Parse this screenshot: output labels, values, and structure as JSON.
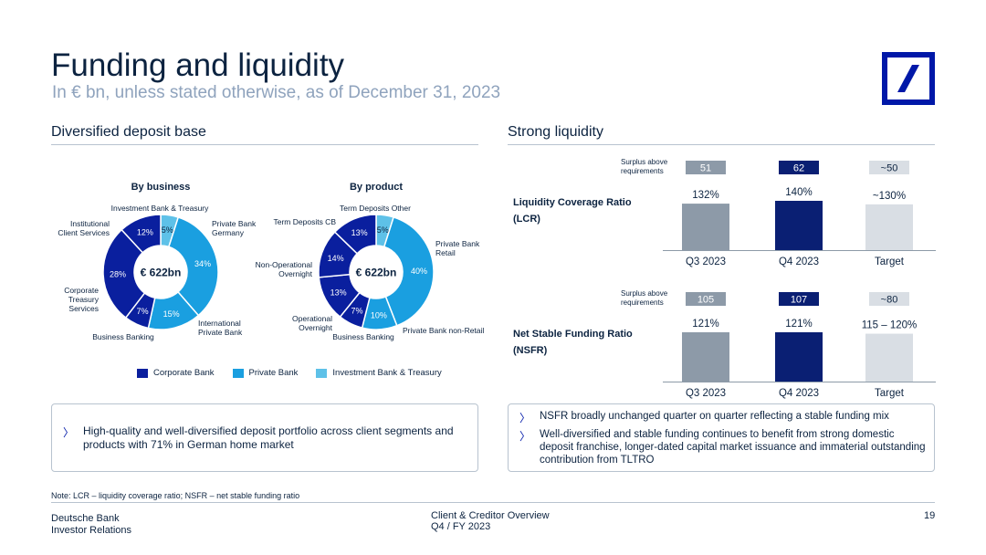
{
  "header": {
    "title": "Funding and liquidity",
    "subtitle": "In € bn, unless stated otherwise, as of December 31, 2023"
  },
  "colors": {
    "corporate_bank": "#0a1f9e",
    "private_bank": "#1a9fe0",
    "investment_bank": "#5ec1e8",
    "bar_q3": "#8d9aa8",
    "bar_q4": "#0a1f73",
    "bar_target": "#d9dee4",
    "brand": "#0018a8"
  },
  "left_section": {
    "title": "Diversified deposit base",
    "by_business_title": "By business",
    "by_product_title": "By product",
    "legend": [
      {
        "label": "Corporate Bank",
        "color": "#0a1f9e"
      },
      {
        "label": "Private Bank",
        "color": "#1a9fe0"
      },
      {
        "label": "Investment Bank & Treasury",
        "color": "#5ec1e8"
      }
    ],
    "bullet": "High-quality and well-diversified deposit portfolio across client segments and products with 71% in German home market"
  },
  "right_section": {
    "title": "Strong liquidity",
    "bullets": [
      "NSFR broadly unchanged quarter on quarter reflecting a stable funding mix",
      "Well-diversified and stable funding continues to benefit from strong domestic deposit franchise, longer-dated capital market issuance and immaterial outstanding contribution from TLTRO"
    ]
  },
  "chart_data": [
    {
      "type": "pie",
      "title": "By business",
      "center_label": "€ 622bn",
      "slices": [
        {
          "label": "Investment Bank & Treasury",
          "value_label": "5%",
          "value": 5,
          "group": "Investment Bank & Treasury"
        },
        {
          "label": "Private Bank Germany",
          "value_label": "34%",
          "value": 34,
          "group": "Private Bank"
        },
        {
          "label": "International Private Bank",
          "value_label": "15%",
          "value": 15,
          "group": "Private Bank"
        },
        {
          "label": "Business Banking",
          "value_label": "7%",
          "value": 7,
          "group": "Corporate Bank"
        },
        {
          "label": "Corporate Treasury Services",
          "value_label": "28%",
          "value": 28,
          "group": "Corporate Bank"
        },
        {
          "label": "Institutional Client Services",
          "value_label": "12%",
          "value": 12,
          "group": "Corporate Bank"
        }
      ]
    },
    {
      "type": "pie",
      "title": "By product",
      "center_label": "€ 622bn",
      "slices": [
        {
          "label": "Term Deposits Other",
          "value_label": "5%",
          "value": 5,
          "group": "Investment Bank & Treasury"
        },
        {
          "label": "Private Bank Retail",
          "value_label": "40%",
          "value": 40,
          "group": "Private Bank"
        },
        {
          "label": "Private Bank non-Retail",
          "value_label": "10%",
          "value": 10,
          "group": "Private Bank"
        },
        {
          "label": "Business Banking",
          "value_label": "7%",
          "value": 7,
          "group": "Corporate Bank"
        },
        {
          "label": "Operational Overnight",
          "value_label": "13%",
          "value": 13,
          "group": "Corporate Bank"
        },
        {
          "label": "Non-Operational Overnight",
          "value_label": "14%",
          "value": 14,
          "group": "Corporate Bank"
        },
        {
          "label": "Term Deposits CB",
          "value_label": "13%",
          "value": 13,
          "group": "Corporate Bank"
        }
      ]
    },
    {
      "type": "bar",
      "title": "Liquidity Coverage Ratio (LCR)",
      "title_lines": [
        "Liquidity Coverage Ratio",
        "(LCR)"
      ],
      "surplus_label_lines": [
        "Surplus above",
        "requirements"
      ],
      "categories": [
        "Q3 2023",
        "Q4 2023",
        "Target"
      ],
      "values": [
        132,
        140,
        130
      ],
      "value_labels": [
        "132%",
        "140%",
        "~130%"
      ],
      "surplus": [
        "51",
        "62",
        "~50"
      ],
      "ylim": [
        0,
        140
      ]
    },
    {
      "type": "bar",
      "title": "Net Stable Funding Ratio (NSFR)",
      "title_lines": [
        "Net Stable Funding Ratio",
        "(NSFR)"
      ],
      "surplus_label_lines": [
        "Surplus above",
        "requirements"
      ],
      "categories": [
        "Q3 2023",
        "Q4 2023",
        "Target"
      ],
      "values": [
        121,
        121,
        117.5
      ],
      "value_labels": [
        "121%",
        "121%",
        "115 – 120%"
      ],
      "surplus": [
        "105",
        "107",
        "~80"
      ],
      "ylim": [
        0,
        121
      ]
    }
  ],
  "footer": {
    "note": "Note: LCR – liquidity coverage ratio; NSFR – net stable funding ratio",
    "company": "Deutsche Bank",
    "department": "Investor Relations",
    "doc_title": "Client & Creditor Overview",
    "period": "Q4 / FY 2023",
    "page": "19"
  }
}
